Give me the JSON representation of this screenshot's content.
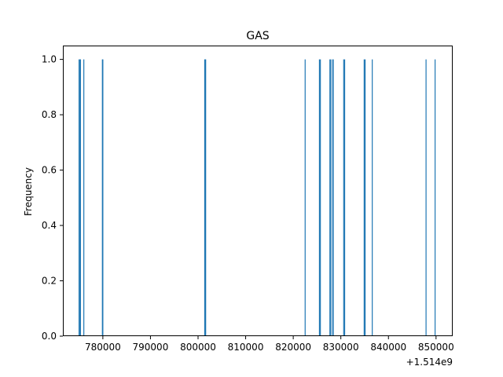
{
  "chart_data": {
    "type": "bar",
    "title": "GAS",
    "xlabel": "",
    "ylabel": "Frequency",
    "x_offset_label": "+1.514e9",
    "xlim": [
      771600,
      853500
    ],
    "ylim": [
      0,
      1.05
    ],
    "x_ticks": [
      780000,
      790000,
      800000,
      810000,
      820000,
      830000,
      840000,
      850000
    ],
    "x_tick_labels": [
      "780000",
      "790000",
      "800000",
      "810000",
      "820000",
      "830000",
      "840000",
      "850000"
    ],
    "y_ticks": [
      0,
      0.2,
      0.4,
      0.6,
      0.8,
      1.0
    ],
    "y_tick_labels": [
      "0.0",
      "0.2",
      "0.4",
      "0.6",
      "0.8",
      "1.0"
    ],
    "bar_color": "#1f77b4",
    "bins": [
      {
        "x": 775000,
        "value": 1
      },
      {
        "x": 775200,
        "value": 1
      },
      {
        "x": 775300,
        "value": 1
      },
      {
        "x": 776000,
        "value": 1
      },
      {
        "x": 779900,
        "value": 1
      },
      {
        "x": 780000,
        "value": 1
      },
      {
        "x": 801400,
        "value": 1
      },
      {
        "x": 801500,
        "value": 1
      },
      {
        "x": 801600,
        "value": 1
      },
      {
        "x": 822500,
        "value": 1
      },
      {
        "x": 825500,
        "value": 1
      },
      {
        "x": 825700,
        "value": 1
      },
      {
        "x": 827700,
        "value": 1
      },
      {
        "x": 827900,
        "value": 1
      },
      {
        "x": 828300,
        "value": 1
      },
      {
        "x": 828400,
        "value": 1
      },
      {
        "x": 830600,
        "value": 1
      },
      {
        "x": 830800,
        "value": 1
      },
      {
        "x": 834900,
        "value": 1
      },
      {
        "x": 835100,
        "value": 1
      },
      {
        "x": 836600,
        "value": 1
      },
      {
        "x": 847900,
        "value": 1
      },
      {
        "x": 849800,
        "value": 1
      }
    ]
  }
}
